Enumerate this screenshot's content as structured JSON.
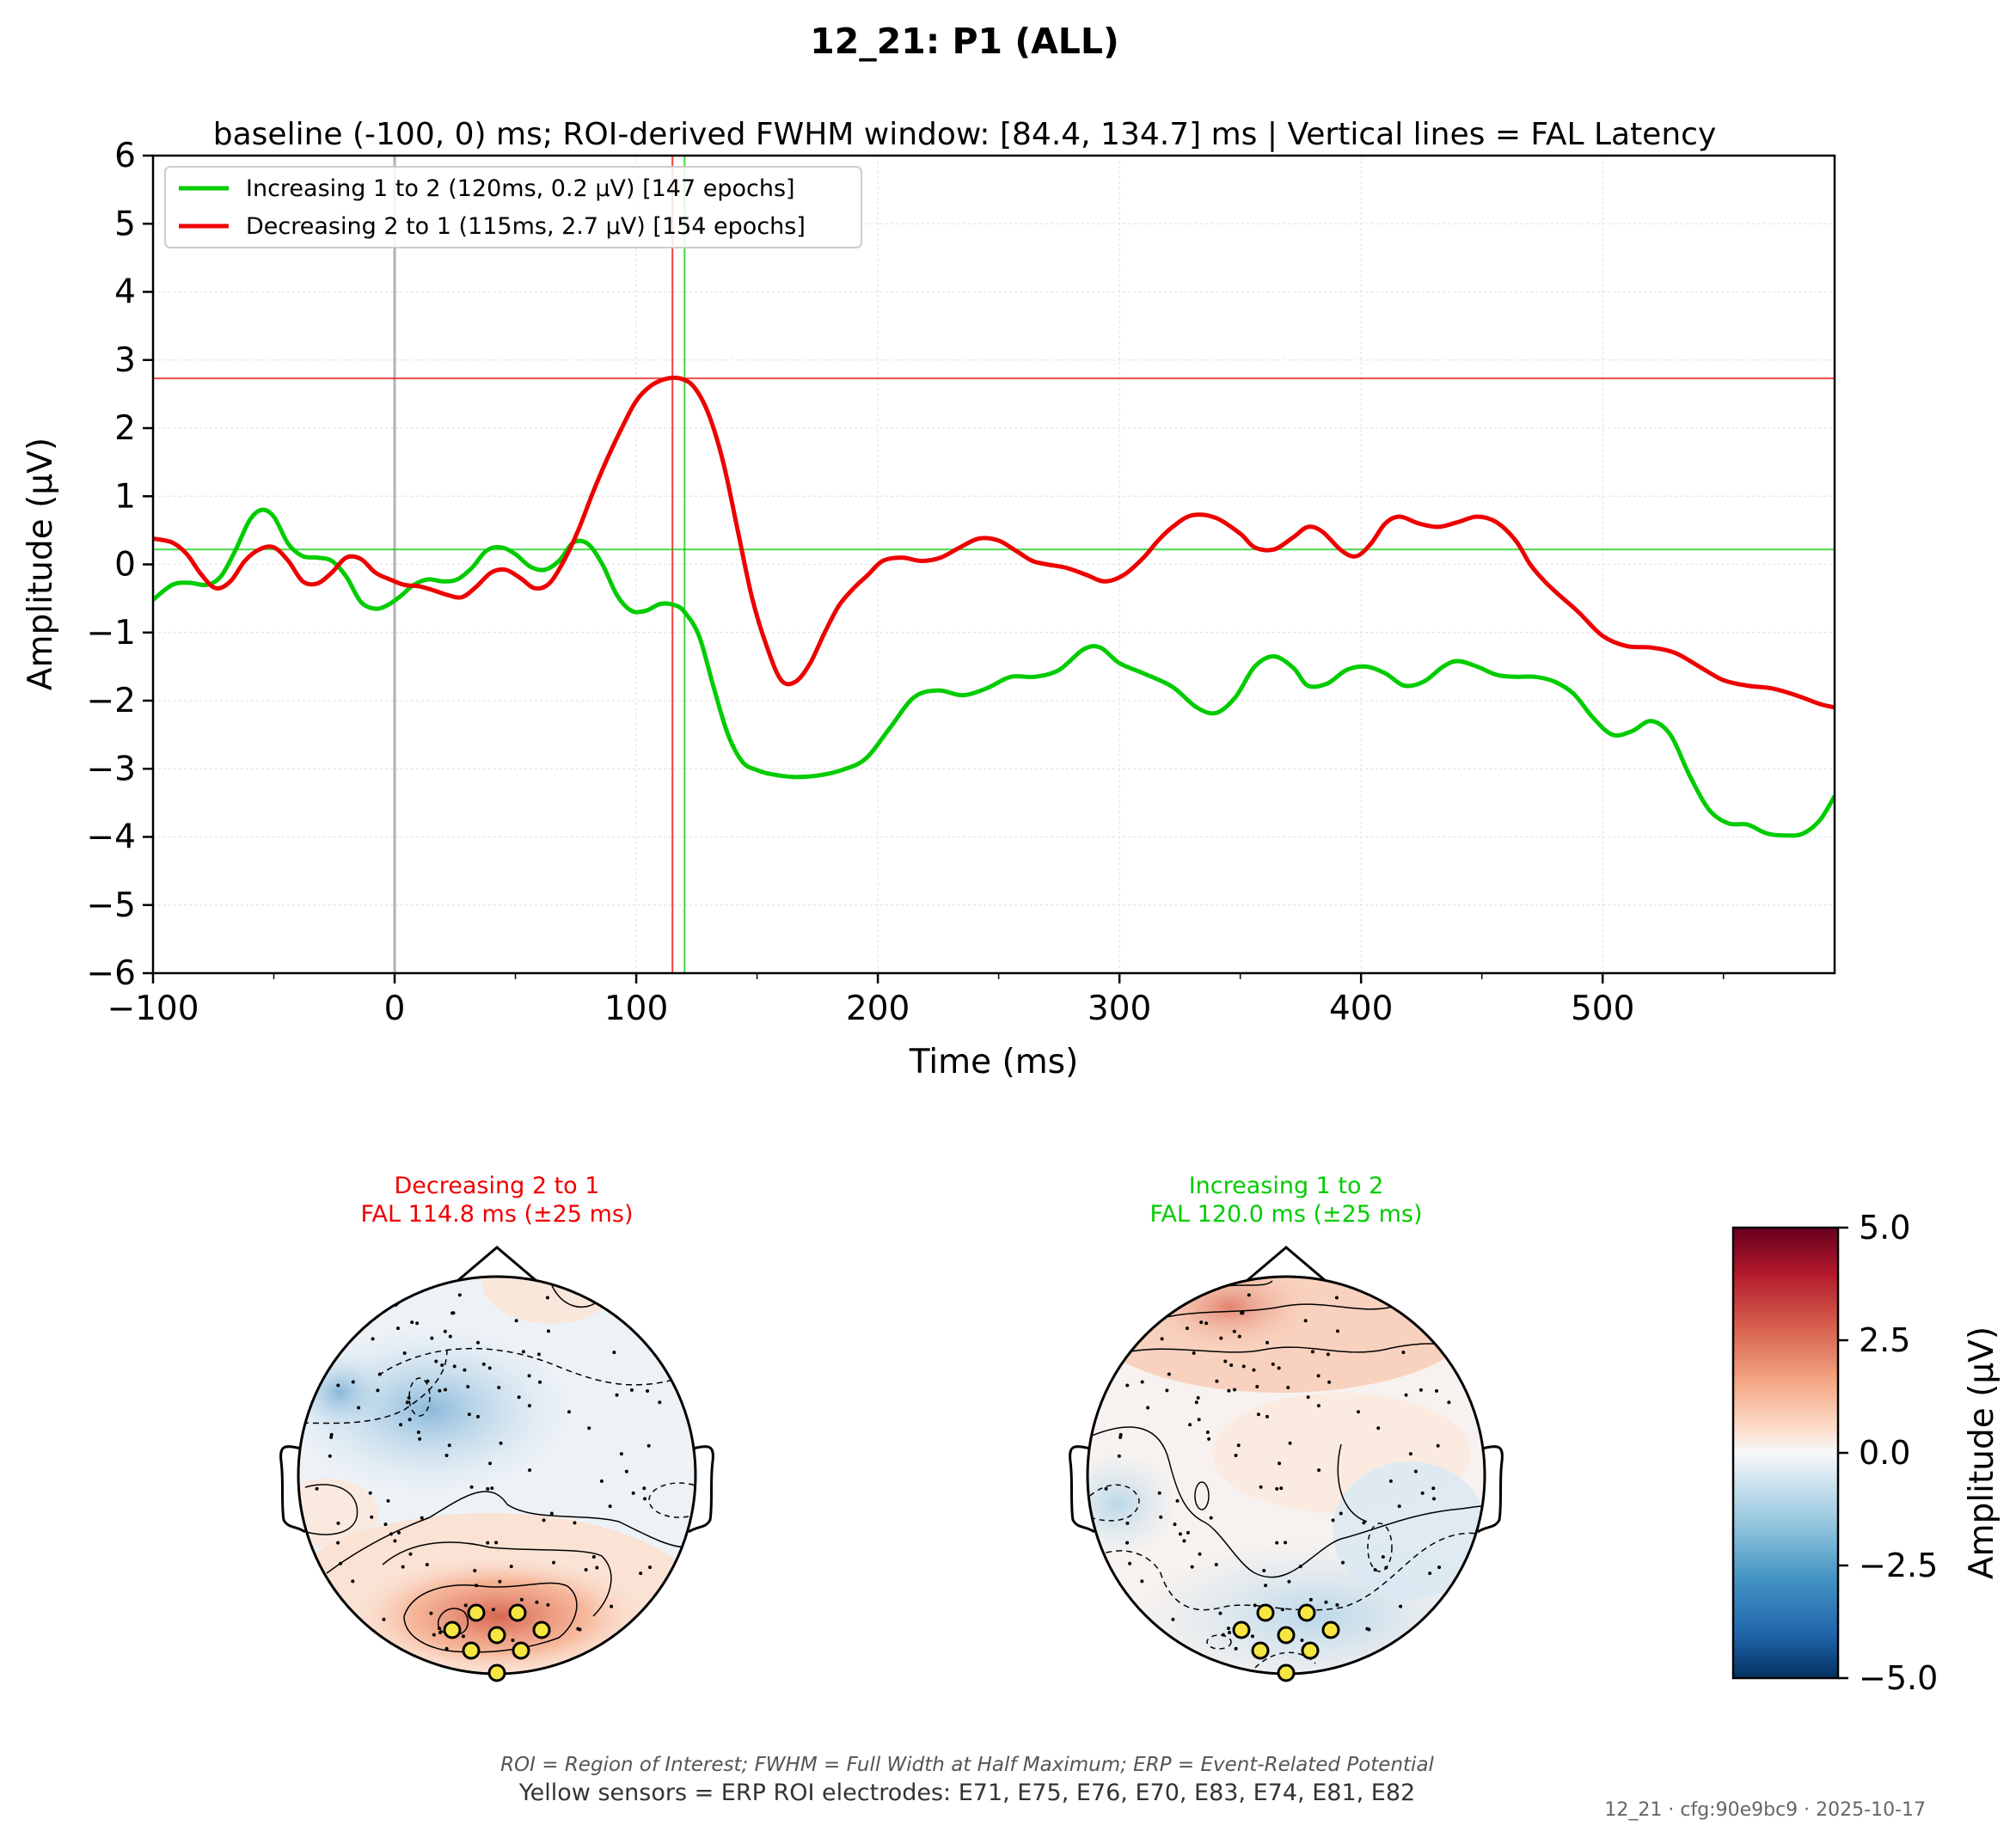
{
  "figure": {
    "title": "12_21: P1 (ALL)",
    "subtitle": "baseline (-100, 0) ms; ROI-derived FWHM window: [84.4, 134.7] ms | Vertical lines = FAL Latency",
    "footnote_italic": "ROI = Region of Interest; FWHM = Full Width at Half Maximum; ERP = Event-Related Potential",
    "footnote_sensors": "Yellow sensors = ERP ROI electrodes: E71, E75, E76, E70, E83, E74, E81, E82",
    "stamp": "12_21 · cfg:90e9bc9 · 2025-10-17"
  },
  "colors": {
    "increasing": "#00cc00",
    "decreasing": "#ee0000",
    "zero_line": "#aaaaaa"
  },
  "chart_data": [
    {
      "type": "line",
      "xlabel": "Time (ms)",
      "ylabel": "Amplitude (µV)",
      "xlim": [
        -100,
        596
      ],
      "ylim": [
        -6,
        6
      ],
      "x_ticks": [
        -100,
        0,
        100,
        200,
        300,
        400,
        500
      ],
      "x_tick_labels": [
        "−100",
        "0",
        "100",
        "200",
        "300",
        "400",
        "500"
      ],
      "y_ticks": [
        -6,
        -5,
        -4,
        -3,
        -2,
        -1,
        0,
        1,
        2,
        3,
        4,
        5,
        6
      ],
      "y_tick_labels": [
        "−6",
        "−5",
        "−4",
        "−3",
        "−2",
        "−1",
        "0",
        "1",
        "2",
        "3",
        "4",
        "5",
        "6"
      ],
      "grid": true,
      "legend_position": "top-left",
      "series": [
        {
          "name": "Increasing 1 to 2 (120ms, 0.2 µV) [147 epochs]",
          "color": "#00cc00",
          "fal_latency": 120,
          "peak_amplitude": 0.22,
          "x": [
            -100,
            -92,
            -85,
            -78,
            -72,
            -66,
            -60,
            -55,
            -50,
            -44,
            -38,
            -32,
            -26,
            -20,
            -14,
            -8,
            -3,
            2,
            8,
            14,
            20,
            26,
            32,
            38,
            44,
            50,
            56,
            62,
            68,
            74,
            80,
            86,
            92,
            98,
            104,
            110,
            116,
            120,
            126,
            132,
            138,
            144,
            150,
            156,
            165,
            175,
            185,
            195,
            205,
            215,
            225,
            235,
            245,
            255,
            265,
            275,
            285,
            292,
            300,
            310,
            322,
            332,
            340,
            348,
            356,
            364,
            372,
            378,
            386,
            394,
            402,
            410,
            418,
            426,
            434,
            440,
            448,
            456,
            464,
            472,
            480,
            488,
            496,
            504,
            512,
            520,
            528,
            536,
            544,
            552,
            560,
            568,
            576,
            583,
            590,
            596
          ],
          "y": [
            -0.52,
            -0.3,
            -0.27,
            -0.3,
            -0.18,
            0.2,
            0.65,
            0.8,
            0.7,
            0.3,
            0.12,
            0.1,
            0.05,
            -0.18,
            -0.55,
            -0.65,
            -0.6,
            -0.48,
            -0.3,
            -0.22,
            -0.25,
            -0.22,
            -0.05,
            0.2,
            0.25,
            0.15,
            -0.03,
            -0.08,
            0.05,
            0.32,
            0.3,
            0.0,
            -0.45,
            -0.68,
            -0.68,
            -0.58,
            -0.6,
            -0.7,
            -1.05,
            -1.8,
            -2.5,
            -2.9,
            -3.02,
            -3.08,
            -3.12,
            -3.1,
            -3.02,
            -2.85,
            -2.4,
            -1.95,
            -1.85,
            -1.92,
            -1.82,
            -1.65,
            -1.65,
            -1.55,
            -1.25,
            -1.22,
            -1.45,
            -1.6,
            -1.8,
            -2.1,
            -2.18,
            -1.95,
            -1.5,
            -1.35,
            -1.52,
            -1.78,
            -1.75,
            -1.55,
            -1.5,
            -1.6,
            -1.78,
            -1.72,
            -1.5,
            -1.42,
            -1.5,
            -1.62,
            -1.65,
            -1.65,
            -1.72,
            -1.9,
            -2.25,
            -2.5,
            -2.45,
            -2.3,
            -2.5,
            -3.1,
            -3.6,
            -3.8,
            -3.82,
            -3.95,
            -3.98,
            -3.95,
            -3.75,
            -3.4
          ]
        },
        {
          "name": "Decreasing 2 to 1 (115ms, 2.7 µV) [154 epochs]",
          "color": "#ee0000",
          "fal_latency": 115,
          "peak_amplitude": 2.73,
          "x": [
            -100,
            -92,
            -86,
            -80,
            -74,
            -68,
            -62,
            -56,
            -50,
            -44,
            -38,
            -32,
            -26,
            -20,
            -14,
            -8,
            -2,
            4,
            10,
            16,
            22,
            28,
            34,
            40,
            46,
            52,
            58,
            64,
            70,
            76,
            82,
            88,
            94,
            100,
            106,
            112,
            118,
            124,
            130,
            136,
            142,
            148,
            154,
            160,
            166,
            172,
            178,
            184,
            190,
            196,
            202,
            210,
            218,
            226,
            234,
            242,
            250,
            258,
            264,
            270,
            278,
            286,
            294,
            302,
            310,
            316,
            322,
            330,
            340,
            350,
            356,
            364,
            372,
            378,
            384,
            392,
            398,
            404,
            410,
            416,
            424,
            432,
            440,
            448,
            456,
            464,
            470,
            476,
            482,
            490,
            500,
            510,
            520,
            530,
            540,
            550,
            560,
            570,
            580,
            590,
            596
          ],
          "y": [
            0.38,
            0.32,
            0.15,
            -0.15,
            -0.35,
            -0.25,
            0.05,
            0.22,
            0.25,
            0.05,
            -0.25,
            -0.28,
            -0.12,
            0.1,
            0.08,
            -0.12,
            -0.22,
            -0.3,
            -0.32,
            -0.38,
            -0.45,
            -0.48,
            -0.32,
            -0.12,
            -0.08,
            -0.2,
            -0.35,
            -0.28,
            0.05,
            0.5,
            1.05,
            1.55,
            2.0,
            2.4,
            2.62,
            2.72,
            2.73,
            2.6,
            2.2,
            1.5,
            0.5,
            -0.5,
            -1.2,
            -1.7,
            -1.72,
            -1.45,
            -1.0,
            -0.6,
            -0.35,
            -0.15,
            0.05,
            0.1,
            0.05,
            0.1,
            0.25,
            0.38,
            0.35,
            0.18,
            0.05,
            0.0,
            -0.05,
            -0.15,
            -0.25,
            -0.15,
            0.1,
            0.35,
            0.55,
            0.72,
            0.68,
            0.45,
            0.25,
            0.22,
            0.4,
            0.55,
            0.48,
            0.2,
            0.12,
            0.3,
            0.6,
            0.7,
            0.6,
            0.55,
            0.62,
            0.7,
            0.62,
            0.35,
            0.0,
            -0.25,
            -0.45,
            -0.7,
            -1.05,
            -1.2,
            -1.22,
            -1.3,
            -1.5,
            -1.7,
            -1.78,
            -1.82,
            -1.92,
            -2.05,
            -2.1
          ]
        }
      ],
      "reference_lines": {
        "vertical": [
          {
            "x": 0,
            "color": "#aaaaaa"
          },
          {
            "x": 115,
            "color": "#ee0000"
          },
          {
            "x": 120,
            "color": "#00cc00"
          }
        ],
        "horizontal": [
          {
            "y": 2.73,
            "color": "#ee0000"
          },
          {
            "y": 0.22,
            "color": "#00cc00"
          }
        ]
      }
    },
    {
      "type": "heatmap",
      "subtype": "topomap",
      "title": "Decreasing 2 to 1",
      "subtitle": "FAL 114.8 ms (±25 ms)",
      "title_color": "#ee0000",
      "roi_electrodes": [
        "E71",
        "E75",
        "E76",
        "E70",
        "E83",
        "E74",
        "E81",
        "E82"
      ]
    },
    {
      "type": "heatmap",
      "subtype": "topomap",
      "title": "Increasing 1 to 2",
      "subtitle": "FAL 120.0 ms (±25 ms)",
      "title_color": "#00cc00",
      "roi_electrodes": [
        "E71",
        "E75",
        "E76",
        "E70",
        "E83",
        "E74",
        "E81",
        "E82"
      ]
    },
    {
      "type": "heatmap",
      "subtype": "colorbar",
      "label": "Amplitude (µV)",
      "range": [
        -5,
        5
      ],
      "ticks": [
        5,
        2.5,
        0,
        -2.5,
        -5
      ],
      "tick_labels": [
        "5.0",
        "2.5",
        "0.0",
        "−2.5",
        "−5.0"
      ],
      "colormap": "RdBu_r"
    }
  ]
}
